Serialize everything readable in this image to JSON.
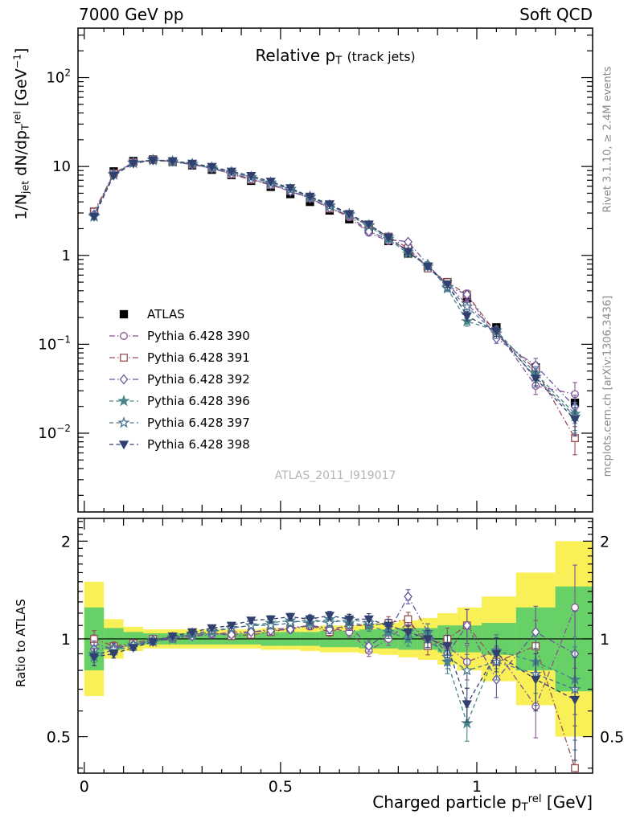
{
  "header": {
    "left": "7000 GeV pp",
    "right": "Soft QCD"
  },
  "side_texts": {
    "top": "Rivet 3.1.10, ≥ 2.4M events",
    "bottom": "mcplots.cern.ch [arXiv:1306.3436]"
  },
  "watermark": "ATLAS_2011_I919017",
  "chart_data": {
    "type": "line",
    "title_parts": [
      {
        "t": "Relative p"
      },
      {
        "t": "T",
        "s": "sub"
      },
      {
        "t": " "
      },
      {
        "t": "(track jets)",
        "s": "small"
      }
    ],
    "xlabel_parts": [
      {
        "t": "Charged particle p"
      },
      {
        "t": "T",
        "s": "sub"
      },
      {
        "t": "rel",
        "s": "sup"
      },
      {
        "t": " [GeV]"
      }
    ],
    "ylabel_main_parts": [
      {
        "t": "1/N"
      },
      {
        "t": "jet",
        "s": "sub"
      },
      {
        "t": " dN/dp"
      },
      {
        "t": "T",
        "s": "sub"
      },
      {
        "t": "rel",
        "s": "sup"
      },
      {
        "t": " [GeV"
      },
      {
        "t": "−1",
        "s": "sup"
      },
      {
        "t": "]"
      }
    ],
    "ylabel_ratio": "Ratio to ATLAS",
    "x": [
      0.025,
      0.075,
      0.125,
      0.175,
      0.225,
      0.275,
      0.325,
      0.375,
      0.425,
      0.475,
      0.525,
      0.575,
      0.625,
      0.675,
      0.725,
      0.775,
      0.825,
      0.875,
      0.925,
      0.975,
      1.05,
      1.15,
      1.25
    ],
    "atlas": {
      "label": "ATLAS",
      "color": "#000000",
      "marker": "square",
      "filled": true,
      "values": [
        3.1,
        8.8,
        11.5,
        12.0,
        11.3,
        10.3,
        9.2,
        8.0,
        6.9,
        5.9,
        4.9,
        4.0,
        3.2,
        2.55,
        1.95,
        1.45,
        1.05,
        0.75,
        0.5,
        0.33,
        0.155,
        0.055,
        0.022
      ],
      "err_rel": [
        0.05,
        0.03,
        0.02,
        0.02,
        0.02,
        0.02,
        0.02,
        0.02,
        0.02,
        0.02,
        0.02,
        0.02,
        0.03,
        0.03,
        0.03,
        0.04,
        0.04,
        0.05,
        0.06,
        0.07,
        0.08,
        0.12,
        0.2
      ]
    },
    "mc_err_rel": [
      0.06,
      0.03,
      0.02,
      0.02,
      0.02,
      0.02,
      0.02,
      0.02,
      0.02,
      0.025,
      0.025,
      0.03,
      0.03,
      0.035,
      0.04,
      0.045,
      0.05,
      0.06,
      0.08,
      0.12,
      0.12,
      0.2,
      0.35
    ],
    "series": [
      {
        "name": "Pythia 6.428 390",
        "color": "#8c5295",
        "marker": "circle",
        "filled": false,
        "dash": "dashdot",
        "ratio": [
          0.97,
          0.93,
          0.96,
          0.98,
          1.0,
          1.02,
          1.03,
          1.05,
          1.05,
          1.07,
          1.08,
          1.1,
          1.08,
          1.05,
          0.92,
          1.0,
          1.12,
          1.0,
          0.95,
          0.85,
          0.92,
          0.62,
          1.25
        ]
      },
      {
        "name": "Pythia 6.428 391",
        "color": "#985055",
        "marker": "square",
        "filled": false,
        "dash": "dashdot",
        "ratio": [
          1.0,
          0.95,
          0.97,
          1.0,
          1.01,
          1.03,
          1.05,
          1.02,
          1.03,
          1.05,
          1.08,
          1.1,
          1.05,
          1.1,
          1.1,
          1.12,
          1.15,
          0.95,
          1.0,
          1.1,
          0.85,
          0.95,
          0.4
        ]
      },
      {
        "name": "Pythia 6.428 392",
        "color": "#6656a0",
        "marker": "diamond",
        "filled": false,
        "dash": "dashdot",
        "ratio": [
          0.93,
          0.94,
          0.96,
          0.99,
          1.01,
          1.02,
          1.04,
          1.03,
          1.05,
          1.06,
          1.07,
          1.1,
          1.07,
          1.1,
          0.95,
          1.05,
          1.35,
          1.05,
          0.9,
          1.1,
          0.75,
          1.05,
          0.9
        ]
      },
      {
        "name": "Pythia 6.428 396",
        "color": "#47858a",
        "marker": "star",
        "filled": true,
        "dash": "dashed",
        "ratio": [
          0.9,
          0.92,
          0.95,
          0.98,
          1.0,
          1.03,
          1.05,
          1.08,
          1.1,
          1.12,
          1.14,
          1.12,
          1.15,
          1.12,
          1.1,
          1.05,
          1.0,
          1.05,
          0.85,
          0.55,
          0.92,
          0.85,
          0.75
        ]
      },
      {
        "name": "Pythia 6.428 397",
        "color": "#4b7490",
        "marker": "star",
        "filled": false,
        "dash": "dashed",
        "ratio": [
          0.88,
          0.93,
          0.96,
          0.99,
          1.01,
          1.04,
          1.06,
          1.08,
          1.1,
          1.1,
          1.12,
          1.15,
          1.12,
          1.15,
          1.12,
          1.1,
          1.05,
          1.0,
          0.88,
          0.8,
          0.85,
          0.78,
          0.7
        ]
      },
      {
        "name": "Pythia 6.428 398",
        "color": "#31406e",
        "marker": "triangle-down",
        "filled": true,
        "dash": "dashed",
        "ratio": [
          0.88,
          0.9,
          0.94,
          0.98,
          1.02,
          1.05,
          1.08,
          1.1,
          1.14,
          1.15,
          1.17,
          1.15,
          1.18,
          1.15,
          1.15,
          1.1,
          1.05,
          1.0,
          0.95,
          0.63,
          0.9,
          0.75,
          0.65
        ]
      }
    ],
    "bands": {
      "green_color": "#67d067",
      "yellow_color": "#f9ef57",
      "green_factor": [
        1.25,
        1.08,
        1.05,
        1.04,
        1.04,
        1.04,
        1.04,
        1.04,
        1.04,
        1.05,
        1.05,
        1.05,
        1.06,
        1.06,
        1.07,
        1.07,
        1.08,
        1.08,
        1.1,
        1.1,
        1.12,
        1.25,
        1.45
      ],
      "yellow_factor": [
        1.5,
        1.15,
        1.09,
        1.07,
        1.07,
        1.07,
        1.07,
        1.07,
        1.07,
        1.08,
        1.08,
        1.09,
        1.1,
        1.1,
        1.11,
        1.12,
        1.14,
        1.16,
        1.2,
        1.25,
        1.35,
        1.6,
        2.0
      ]
    },
    "axes": {
      "x": {
        "min": -0.016,
        "max": 1.295,
        "major": [
          0,
          0.5,
          1
        ],
        "major_labels": [
          "0",
          "0.5",
          "1"
        ]
      },
      "y_main": {
        "scale": "log",
        "min": 0.0013,
        "max": 360,
        "decades": [
          2,
          1,
          0,
          -1,
          -2
        ]
      },
      "y_ratio": {
        "scale": "log",
        "min": 0.386,
        "max": 2.35,
        "major": [
          0.5,
          1,
          2
        ],
        "major_labels": [
          "0.5",
          "1",
          "2"
        ]
      }
    }
  }
}
